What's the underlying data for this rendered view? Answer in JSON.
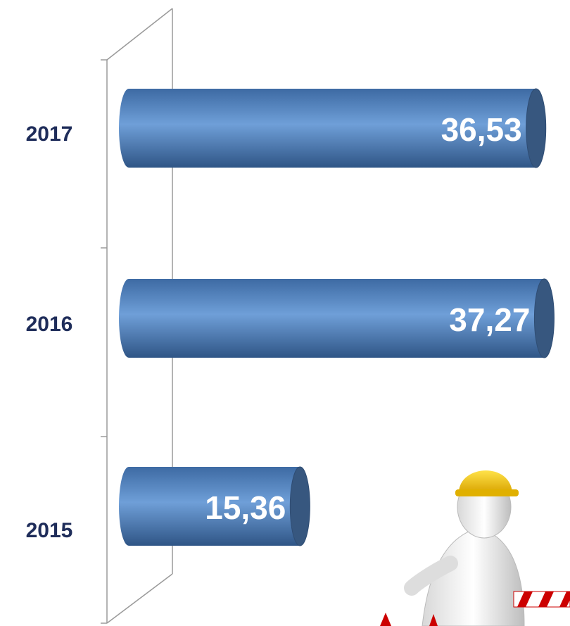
{
  "chart_data": {
    "type": "bar",
    "orientation": "horizontal",
    "categories": [
      "2017",
      "2016",
      "2015"
    ],
    "values": [
      36.53,
      37.27,
      15.36
    ],
    "value_labels": [
      "36,53",
      "37,27",
      "15,36"
    ],
    "color": "#4f81bd",
    "xlim": [
      0,
      38
    ]
  }
}
